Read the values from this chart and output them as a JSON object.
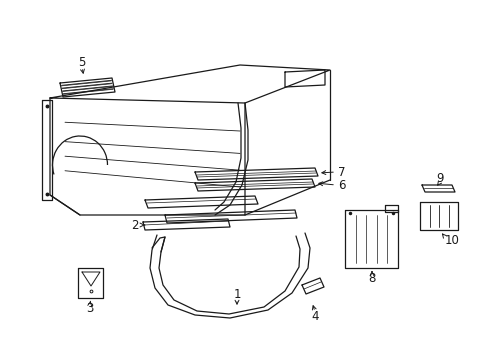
{
  "bg_color": "#ffffff",
  "line_color": "#1a1a1a",
  "line_width": 0.9,
  "font_size": 8.5
}
